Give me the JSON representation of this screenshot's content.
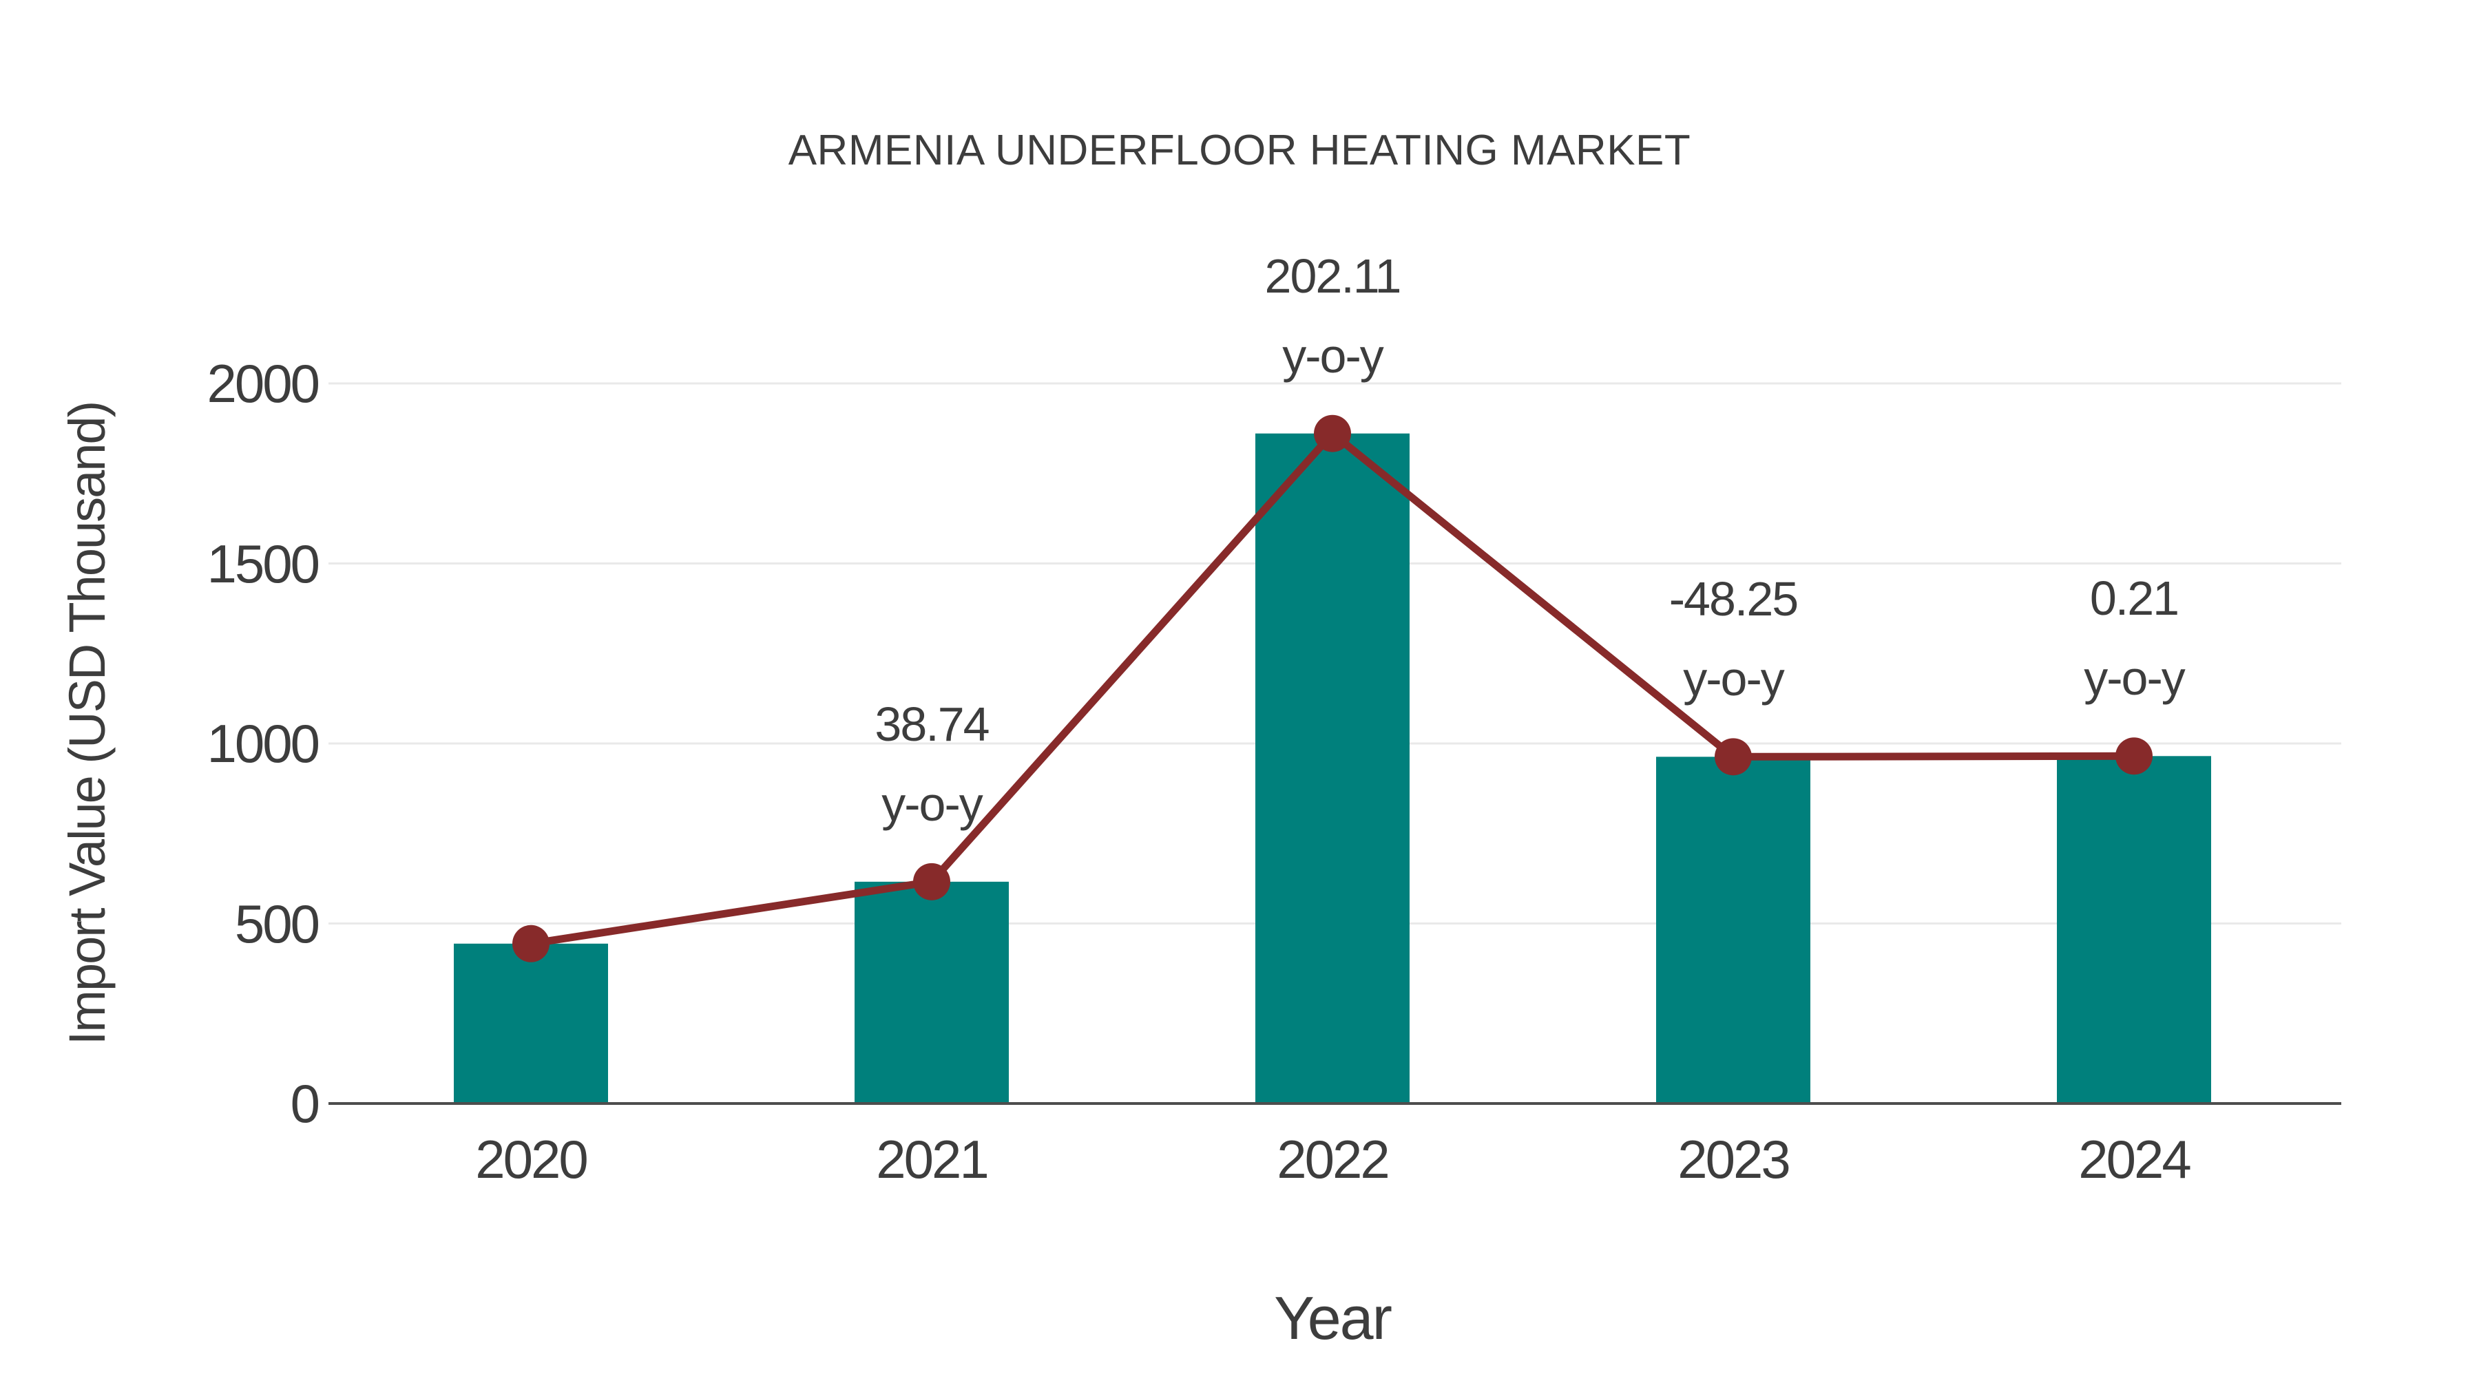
{
  "chart_data": {
    "type": "bar",
    "subtype": "bar-with-line-overlay",
    "title": "ARMENIA UNDERFLOOR HEATING MARKET",
    "xlabel": "Year",
    "ylabel": "Import Value (USD Thousand)",
    "categories": [
      "2020",
      "2021",
      "2022",
      "2023",
      "2024"
    ],
    "series": [
      {
        "name": "Import Value (USD Thousand)",
        "type": "bar",
        "values": [
          444,
          616,
          1861,
          963,
          965
        ]
      },
      {
        "name": "y-o-y change (%)",
        "type": "line",
        "values": [
          444,
          616,
          1861,
          963,
          965
        ],
        "yoy_percent": [
          null,
          38.74,
          202.11,
          -48.25,
          0.21
        ]
      }
    ],
    "annotations": [
      {
        "category_index": 1,
        "value_text": "38.74",
        "suffix_text": "y-o-y"
      },
      {
        "category_index": 2,
        "value_text": "202.11",
        "suffix_text": "y-o-y"
      },
      {
        "category_index": 3,
        "value_text": "-48.25",
        "suffix_text": "y-o-y"
      },
      {
        "category_index": 4,
        "value_text": "0.21",
        "suffix_text": "y-o-y"
      }
    ],
    "yticks": [
      0,
      500,
      1000,
      1500,
      2000
    ],
    "ylim": [
      0,
      2185
    ],
    "grid": "horizontal",
    "legend_position": "none",
    "colors": {
      "bar": "#00807C",
      "line": "#872A2A",
      "marker": "#872A2A",
      "gridline": "#E9E9E9",
      "axis_line": "#4D4D4D",
      "text": "#3D3D3D",
      "background": "#FFFFFF"
    }
  }
}
